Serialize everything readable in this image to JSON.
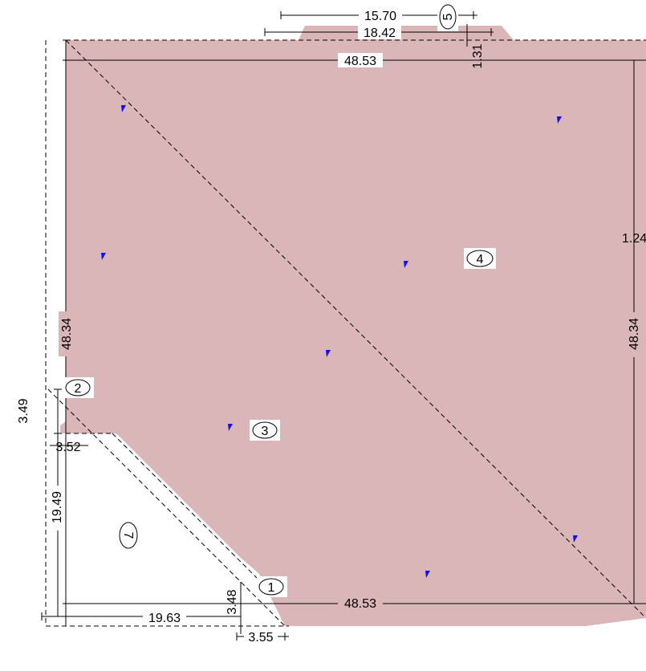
{
  "colors": {
    "region_fill": "#dbb6b8",
    "line": "#000000",
    "marker": "#1010ee",
    "background": "#ffffff"
  },
  "dimensions": {
    "top_short": "15.70",
    "top_mid": "18.42",
    "top_full": "48.53",
    "top_offset": "1.31",
    "right_side": "1.24",
    "right_height": "48.34",
    "left_height": "48.34",
    "left_small": "3.49",
    "left_step": "3.52",
    "left_lower": "19.49",
    "bottom_full": "48.53",
    "bottom_left": "19.63",
    "bottom_small_v": "3.48",
    "bottom_small_h": "3.55"
  },
  "region_tags": [
    "1",
    "2",
    "3",
    "4",
    "5",
    "7"
  ],
  "marker_icon": "blue-triangle-marker-icon"
}
